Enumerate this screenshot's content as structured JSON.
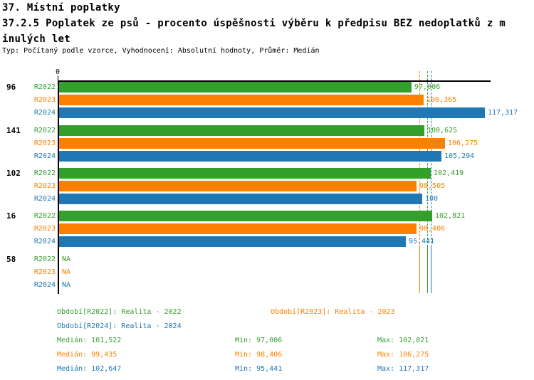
{
  "header": {
    "line1": "37. Místní poplatky",
    "line2": "37.2.5 Poplatek ze psů - procento úspěšnosti výběru k předpisu BEZ nedoplatků z m",
    "line3": "inulých let",
    "meta": "Typ: Počítaný podle vzorce, Vyhodnocení: Absolutní hodnoty, Průměr: Medián"
  },
  "colors": {
    "r2022": "#33A02C",
    "r2023": "#FF7F00",
    "r2024": "#1F78B4",
    "axis": "#000000"
  },
  "chart_data": {
    "type": "bar",
    "orientation": "horizontal",
    "title": "37.2.5 Poplatek ze psů - procento úspěšnosti výběru k předpisu BEZ nedoplatků z minulých let",
    "origin_label": "0",
    "xlim": [
      0,
      119
    ],
    "grid": false,
    "categories": [
      "96",
      "141",
      "102",
      "16",
      "58"
    ],
    "series": [
      {
        "name": "R2022",
        "color": "#33A02C",
        "values": [
          97.006,
          100.625,
          102.419,
          102.821,
          null
        ],
        "labels": [
          "97,006",
          "100,625",
          "102,419",
          "102,821",
          "NA"
        ]
      },
      {
        "name": "R2023",
        "color": "#FF7F00",
        "values": [
          100.365,
          106.275,
          98.505,
          98.406,
          null
        ],
        "labels": [
          "100,365",
          "106,275",
          "98,505",
          "98,406",
          "NA"
        ]
      },
      {
        "name": "R2024",
        "color": "#1F78B4",
        "values": [
          117.317,
          105.294,
          100,
          95.441,
          null
        ],
        "labels": [
          "117,317",
          "105,294",
          "100",
          "95,441",
          "NA"
        ]
      }
    ],
    "median_lines": [
      {
        "series": "R2023",
        "value": 99.435,
        "color": "#FF7F00"
      },
      {
        "series": "R2022",
        "value": 101.522,
        "color": "#33A02C"
      },
      {
        "series": "R2024",
        "value": 102.647,
        "color": "#1F78B4"
      }
    ]
  },
  "legend": {
    "period_r2022": "Období[R2022]: Realita - 2022",
    "period_r2023": "Období[R2023]: Realita - 2023",
    "period_r2024": "Období[R2024]: Realita - 2024",
    "stats": [
      {
        "series": "r2022",
        "median": "Medián: 101,522",
        "min": "Min: 97,006",
        "max": "Max: 102,821"
      },
      {
        "series": "r2023",
        "median": "Medián: 99,435",
        "min": "Min: 98,406",
        "max": "Max: 106,275"
      },
      {
        "series": "r2024",
        "median": "Medián: 102,647",
        "min": "Min: 95,441",
        "max": "Max: 117,317"
      }
    ]
  }
}
